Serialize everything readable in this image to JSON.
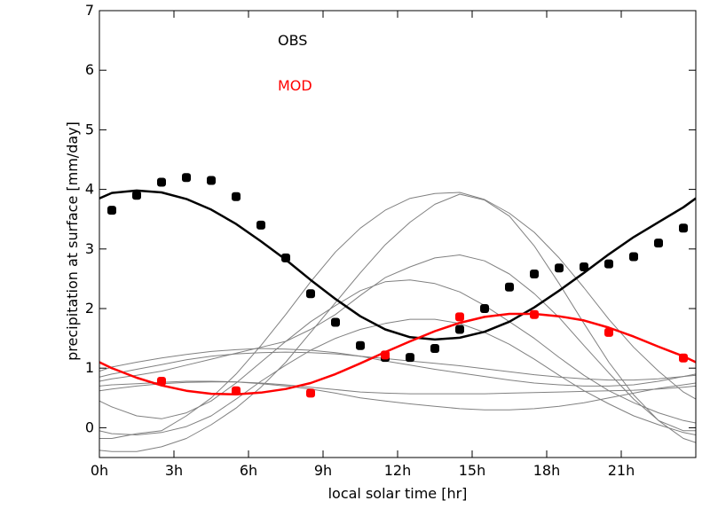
{
  "chart_data": {
    "type": "line",
    "title": "",
    "xlabel": "local solar time [hr]",
    "ylabel": "precipitation at surface [mm/day]",
    "xlim": [
      0,
      24
    ],
    "ylim": [
      -0.5,
      7
    ],
    "xticks": [
      0,
      3,
      6,
      9,
      12,
      15,
      18,
      21
    ],
    "xtick_labels": [
      "0h",
      "3h",
      "6h",
      "9h",
      "12h",
      "15h",
      "18h",
      "21h"
    ],
    "yticks": [
      0,
      1,
      2,
      3,
      4,
      5,
      6,
      7
    ],
    "ytick_labels": [
      "0",
      "1",
      "2",
      "3",
      "4",
      "5",
      "6",
      "7"
    ],
    "grid": false,
    "legend": {
      "position": "top-center",
      "entries": [
        {
          "label": "OBS",
          "color": "#000000"
        },
        {
          "label": "MOD",
          "color": "#ff0000"
        }
      ]
    },
    "series": [
      {
        "name": "OBS",
        "kind": "points",
        "color": "#000000",
        "x": [
          0.5,
          1.5,
          2.5,
          3.5,
          4.5,
          5.5,
          6.5,
          7.5,
          8.5,
          9.5,
          10.5,
          11.5,
          12.5,
          13.5,
          14.5,
          15.5,
          16.5,
          17.5,
          18.5,
          19.5,
          20.5,
          21.5,
          22.5,
          23.5
        ],
        "y": [
          3.65,
          3.9,
          4.12,
          4.2,
          4.15,
          3.88,
          3.4,
          2.85,
          2.25,
          1.77,
          1.38,
          1.18,
          1.18,
          1.33,
          1.65,
          2.0,
          2.36,
          2.58,
          2.68,
          2.7,
          2.75,
          2.87,
          3.1,
          3.35
        ]
      },
      {
        "name": "MOD",
        "kind": "points",
        "color": "#ff0000",
        "x": [
          2.5,
          5.5,
          8.5,
          11.5,
          14.5,
          17.5,
          20.5,
          23.5
        ],
        "y": [
          0.78,
          0.62,
          0.58,
          1.22,
          1.86,
          1.9,
          1.6,
          1.17
        ]
      },
      {
        "kind": "line",
        "color": "#000000",
        "width": 2.5,
        "x": [
          0,
          0.5,
          1.5,
          2.5,
          3.5,
          4.5,
          5.5,
          6.5,
          7.5,
          8.5,
          9.5,
          10.5,
          11.5,
          12.5,
          13.5,
          14.5,
          15.5,
          16.5,
          17.5,
          18.5,
          19.5,
          20.5,
          21.5,
          22.5,
          23.5,
          24
        ],
        "y": [
          3.85,
          3.94,
          3.98,
          3.95,
          3.84,
          3.66,
          3.42,
          3.13,
          2.82,
          2.48,
          2.16,
          1.87,
          1.65,
          1.52,
          1.48,
          1.51,
          1.61,
          1.78,
          2.02,
          2.3,
          2.6,
          2.91,
          3.2,
          3.45,
          3.7,
          3.85
        ]
      },
      {
        "kind": "line",
        "color": "#ff0000",
        "width": 2.5,
        "x": [
          0,
          0.5,
          1.5,
          2.5,
          3.5,
          4.5,
          5.5,
          6.5,
          7.5,
          8.5,
          9.5,
          10.5,
          11.5,
          12.5,
          13.5,
          14.5,
          15.5,
          16.5,
          17.5,
          18.5,
          19.5,
          20.5,
          21.5,
          22.5,
          23.5,
          24
        ],
        "y": [
          1.1,
          1.0,
          0.84,
          0.71,
          0.62,
          0.57,
          0.56,
          0.59,
          0.65,
          0.75,
          0.9,
          1.08,
          1.27,
          1.45,
          1.62,
          1.76,
          1.86,
          1.91,
          1.91,
          1.87,
          1.8,
          1.68,
          1.53,
          1.36,
          1.2,
          1.1
        ]
      },
      {
        "kind": "line",
        "color": "#808080",
        "width": 1,
        "x": [
          0,
          0.5,
          1.5,
          2.5,
          3.5,
          4.5,
          5.5,
          6.5,
          7.5,
          8.5,
          9.5,
          10.5,
          11.5,
          12.5,
          13.5,
          14.5,
          15.5,
          16.5,
          17.5,
          18.5,
          19.5,
          20.5,
          21.5,
          22.5,
          23.5,
          24
        ],
        "y": [
          -0.18,
          -0.18,
          -0.1,
          -0.05,
          0.2,
          0.5,
          0.9,
          1.38,
          1.9,
          2.45,
          2.95,
          3.35,
          3.65,
          3.85,
          3.93,
          3.95,
          3.83,
          3.6,
          3.28,
          2.85,
          2.35,
          1.82,
          1.35,
          0.95,
          0.6,
          0.48
        ]
      },
      {
        "kind": "line",
        "color": "#808080",
        "width": 1,
        "x": [
          0,
          0.5,
          1.5,
          2.5,
          3.5,
          4.5,
          5.5,
          6.5,
          7.5,
          8.5,
          9.5,
          10.5,
          11.5,
          12.5,
          13.5,
          14.5,
          15.5,
          16.5,
          17.5,
          18.5,
          19.5,
          20.5,
          21.5,
          22.5,
          23.5,
          24
        ],
        "y": [
          -0.38,
          -0.4,
          -0.4,
          -0.32,
          -0.18,
          0.05,
          0.33,
          0.68,
          1.1,
          1.6,
          2.1,
          2.6,
          3.07,
          3.45,
          3.75,
          3.92,
          3.82,
          3.55,
          3.05,
          2.42,
          1.75,
          1.1,
          0.55,
          0.12,
          -0.18,
          -0.25
        ]
      },
      {
        "kind": "line",
        "color": "#808080",
        "width": 1,
        "x": [
          0,
          0.5,
          1.5,
          2.5,
          3.5,
          4.5,
          5.5,
          6.5,
          7.5,
          8.5,
          9.5,
          10.5,
          11.5,
          12.5,
          13.5,
          14.5,
          15.5,
          16.5,
          17.5,
          18.5,
          19.5,
          20.5,
          21.5,
          22.5,
          23.5,
          24
        ],
        "y": [
          0.78,
          0.82,
          0.88,
          0.95,
          1.05,
          1.15,
          1.25,
          1.35,
          1.45,
          1.65,
          1.9,
          2.22,
          2.52,
          2.7,
          2.85,
          2.9,
          2.8,
          2.58,
          2.25,
          1.85,
          1.38,
          0.92,
          0.48,
          0.12,
          -0.05,
          -0.05
        ]
      },
      {
        "kind": "line",
        "color": "#808080",
        "width": 1,
        "x": [
          0,
          0.5,
          1.5,
          2.5,
          3.5,
          4.5,
          5.5,
          6.5,
          7.5,
          8.5,
          9.5,
          10.5,
          11.5,
          12.5,
          13.5,
          14.5,
          15.5,
          16.5,
          17.5,
          18.5,
          19.5,
          20.5,
          21.5,
          22.5,
          23.5,
          24
        ],
        "y": [
          0.45,
          0.35,
          0.2,
          0.15,
          0.25,
          0.45,
          0.75,
          1.1,
          1.45,
          1.78,
          2.05,
          2.3,
          2.45,
          2.48,
          2.42,
          2.28,
          2.05,
          1.78,
          1.5,
          1.18,
          0.88,
          0.62,
          0.42,
          0.25,
          0.12,
          0.08
        ]
      },
      {
        "kind": "line",
        "color": "#808080",
        "width": 1,
        "x": [
          0,
          0.5,
          1.5,
          2.5,
          3.5,
          4.5,
          5.5,
          6.5,
          7.5,
          8.5,
          9.5,
          10.5,
          11.5,
          12.5,
          13.5,
          14.5,
          15.5,
          16.5,
          17.5,
          18.5,
          19.5,
          20.5,
          21.5,
          22.5,
          23.5,
          24
        ],
        "y": [
          -0.05,
          -0.1,
          -0.12,
          -0.08,
          0.02,
          0.2,
          0.48,
          0.78,
          1.05,
          1.3,
          1.5,
          1.65,
          1.75,
          1.82,
          1.82,
          1.75,
          1.6,
          1.4,
          1.15,
          0.88,
          0.62,
          0.4,
          0.2,
          0.05,
          -0.08,
          -0.12
        ]
      },
      {
        "kind": "line",
        "color": "#808080",
        "width": 1,
        "x": [
          0,
          0.5,
          1.5,
          2.5,
          3.5,
          4.5,
          5.5,
          6.5,
          7.5,
          8.5,
          9.5,
          10.5,
          11.5,
          12.5,
          13.5,
          14.5,
          15.5,
          16.5,
          17.5,
          18.5,
          19.5,
          20.5,
          21.5,
          22.5,
          23.5,
          24
        ],
        "y": [
          0.95,
          1.02,
          1.1,
          1.17,
          1.23,
          1.28,
          1.31,
          1.33,
          1.32,
          1.3,
          1.26,
          1.2,
          1.12,
          1.05,
          0.98,
          0.92,
          0.86,
          0.8,
          0.75,
          0.72,
          0.7,
          0.7,
          0.72,
          0.78,
          0.86,
          0.9
        ]
      },
      {
        "kind": "line",
        "color": "#808080",
        "width": 1,
        "x": [
          0,
          0.5,
          1.5,
          2.5,
          3.5,
          4.5,
          5.5,
          6.5,
          7.5,
          8.5,
          9.5,
          10.5,
          11.5,
          12.5,
          13.5,
          14.5,
          15.5,
          16.5,
          17.5,
          18.5,
          19.5,
          20.5,
          21.5,
          22.5,
          23.5,
          24
        ],
        "y": [
          0.85,
          0.9,
          0.98,
          1.06,
          1.14,
          1.2,
          1.24,
          1.26,
          1.27,
          1.26,
          1.24,
          1.2,
          1.16,
          1.12,
          1.08,
          1.04,
          0.99,
          0.94,
          0.89,
          0.85,
          0.82,
          0.8,
          0.8,
          0.82,
          0.86,
          0.88
        ]
      },
      {
        "kind": "line",
        "color": "#808080",
        "width": 1,
        "x": [
          0,
          0.5,
          1.5,
          2.5,
          3.5,
          4.5,
          5.5,
          6.5,
          7.5,
          8.5,
          9.5,
          10.5,
          11.5,
          12.5,
          13.5,
          14.5,
          15.5,
          16.5,
          17.5,
          18.5,
          19.5,
          20.5,
          21.5,
          22.5,
          23.5,
          24
        ],
        "y": [
          0.62,
          0.65,
          0.7,
          0.74,
          0.76,
          0.77,
          0.77,
          0.75,
          0.72,
          0.68,
          0.64,
          0.6,
          0.58,
          0.57,
          0.57,
          0.57,
          0.57,
          0.58,
          0.59,
          0.6,
          0.61,
          0.62,
          0.63,
          0.65,
          0.68,
          0.7
        ]
      },
      {
        "kind": "line",
        "color": "#808080",
        "width": 1,
        "x": [
          0,
          0.5,
          1.5,
          2.5,
          3.5,
          4.5,
          5.5,
          6.5,
          7.5,
          8.5,
          9.5,
          10.5,
          11.5,
          12.5,
          13.5,
          14.5,
          15.5,
          16.5,
          17.5,
          18.5,
          19.5,
          20.5,
          21.5,
          22.5,
          23.5,
          24
        ],
        "y": [
          0.7,
          0.72,
          0.74,
          0.76,
          0.78,
          0.78,
          0.77,
          0.74,
          0.7,
          0.65,
          0.58,
          0.5,
          0.45,
          0.4,
          0.36,
          0.32,
          0.3,
          0.3,
          0.32,
          0.36,
          0.42,
          0.5,
          0.58,
          0.66,
          0.72,
          0.75
        ]
      }
    ]
  }
}
